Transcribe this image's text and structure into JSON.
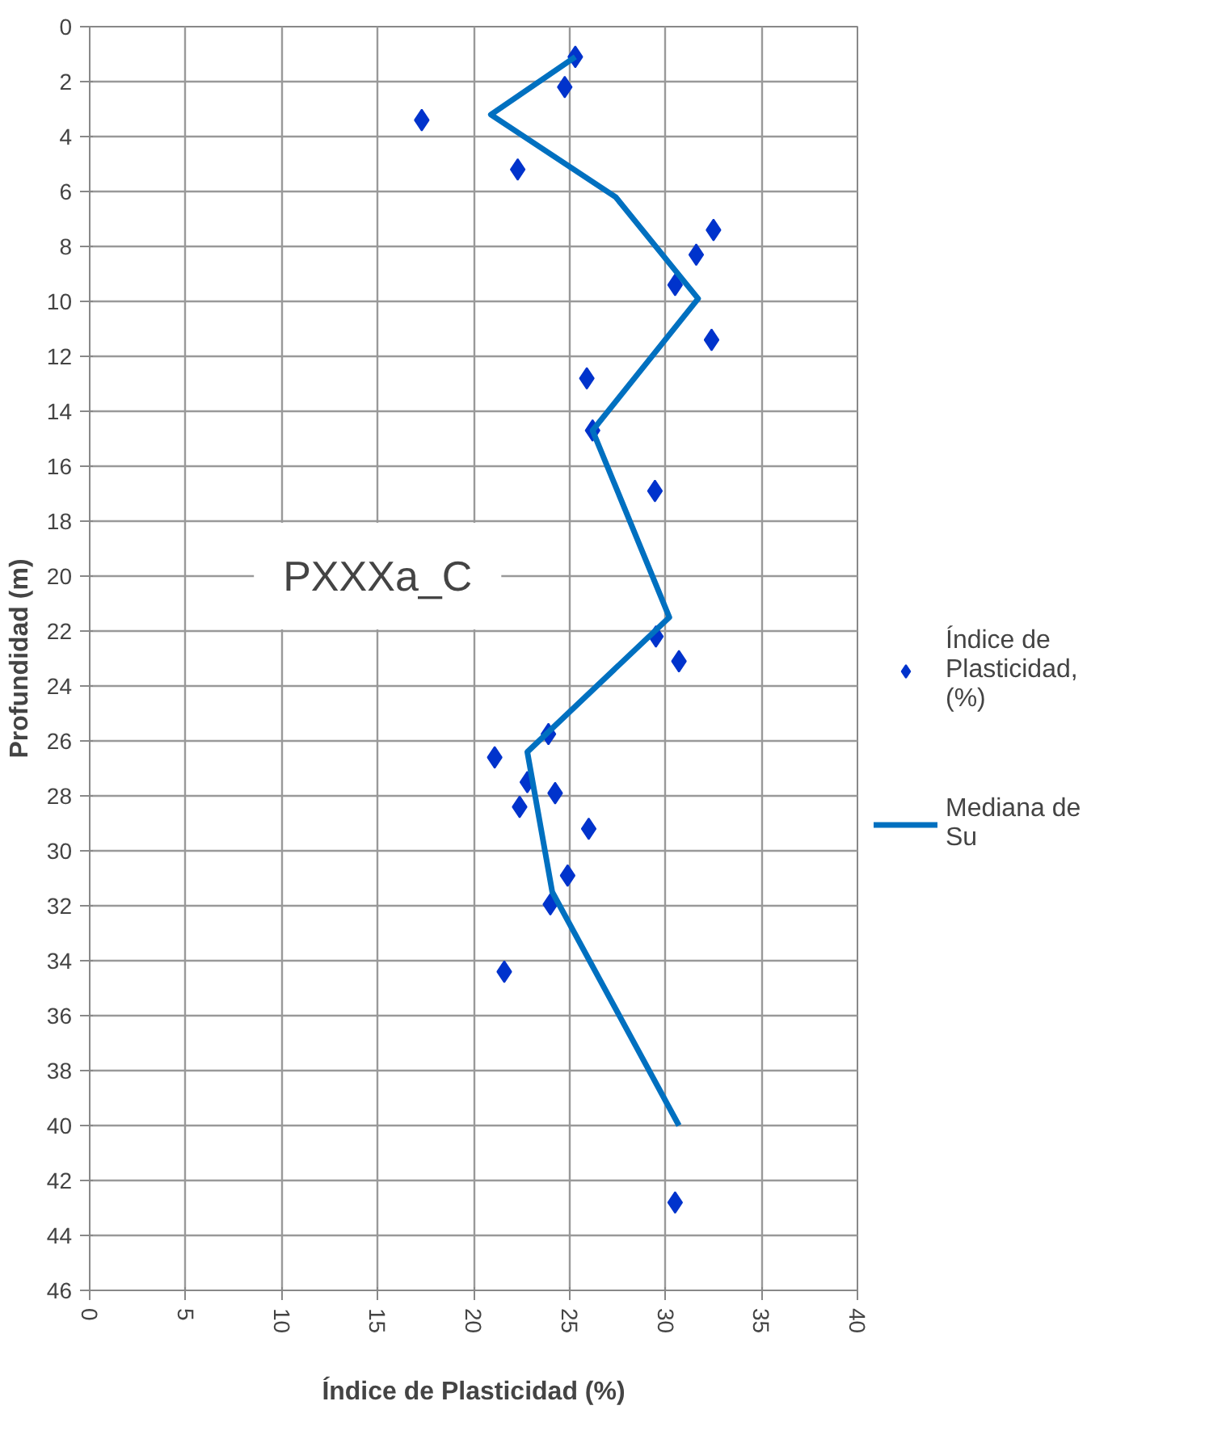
{
  "chart_data": {
    "type": "scatter",
    "xlabel": "Índice de Plasticidad (%)",
    "ylabel": "Profundidad (m)",
    "annotations": [
      "PXXXa_C"
    ],
    "xlim": [
      0,
      40
    ],
    "xticks": [
      0,
      5,
      10,
      15,
      20,
      25,
      30,
      35,
      40
    ],
    "ylim": [
      46,
      0
    ],
    "yticks": [
      0,
      2,
      4,
      6,
      8,
      10,
      12,
      14,
      16,
      18,
      20,
      22,
      24,
      26,
      28,
      30,
      32,
      34,
      36,
      38,
      40,
      42,
      44,
      46
    ],
    "grid": true,
    "legend": "right",
    "series": [
      {
        "name": "Índice de Plasticidad, (%)",
        "marker": "diamond",
        "color": "#0033cc",
        "x": [
          25.3,
          24.75,
          17.3,
          22.3,
          32.5,
          31.6,
          30.5,
          32.4,
          25.9,
          26.2,
          29.45,
          29.5,
          30.7,
          23.9,
          21.1,
          22.8,
          24.25,
          22.4,
          26.0,
          24.9,
          24.0,
          21.6,
          30.5
        ],
        "values": [
          1.1,
          2.2,
          3.4,
          5.2,
          7.4,
          8.3,
          9.4,
          11.4,
          12.8,
          14.7,
          16.9,
          22.2,
          23.1,
          25.75,
          26.6,
          27.5,
          27.9,
          28.4,
          29.2,
          30.9,
          31.95,
          34.4,
          42.8
        ]
      },
      {
        "name": "Mediana de Su",
        "type": "line",
        "marker": "none",
        "line_style": "solid",
        "color": "#0070c0",
        "x": [
          25.3,
          20.9,
          27.4,
          31.7,
          26.2,
          30.2,
          22.8,
          24.1,
          30.7
        ],
        "values": [
          1.1,
          3.2,
          6.2,
          9.9,
          14.7,
          21.5,
          26.4,
          31.5,
          40.0
        ]
      }
    ]
  }
}
